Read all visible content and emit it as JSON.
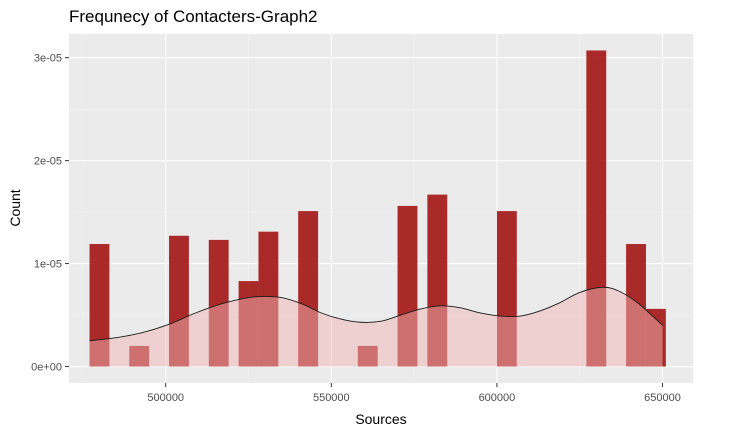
{
  "chart_data": {
    "type": "bar",
    "title": "Frequnecy of Contacters-Graph2",
    "xlabel": "Sources",
    "ylabel": "Count",
    "xlim": [
      470800,
      659200
    ],
    "ylim": [
      -1.6e-06,
      3.23e-05
    ],
    "x_ticks": [
      500000,
      550000,
      600000,
      650000
    ],
    "x_tick_labels": [
      "500000",
      "550000",
      "600000",
      "650000"
    ],
    "y_ticks": [
      0,
      1e-05,
      2e-05,
      3e-05
    ],
    "y_tick_labels": [
      "0e+00",
      "1e-05",
      "2e-05",
      "3e-05"
    ],
    "grid": true,
    "legend": "none",
    "histogram": {
      "bin_width": 6000,
      "bins": [
        {
          "x_start": 477000,
          "x_end": 483000,
          "value": 1.19e-05
        },
        {
          "x_start": 489000,
          "x_end": 495000,
          "value": 2e-06
        },
        {
          "x_start": 501000,
          "x_end": 507000,
          "value": 1.27e-05
        },
        {
          "x_start": 513000,
          "x_end": 519000,
          "value": 1.23e-05
        },
        {
          "x_start": 522000,
          "x_end": 528000,
          "value": 8.3e-06
        },
        {
          "x_start": 528000,
          "x_end": 534000,
          "value": 1.31e-05
        },
        {
          "x_start": 540000,
          "x_end": 546000,
          "value": 1.51e-05
        },
        {
          "x_start": 558000,
          "x_end": 564000,
          "value": 2e-06
        },
        {
          "x_start": 570000,
          "x_end": 576000,
          "value": 1.56e-05
        },
        {
          "x_start": 579000,
          "x_end": 585000,
          "value": 1.67e-05
        },
        {
          "x_start": 600000,
          "x_end": 606000,
          "value": 1.51e-05
        },
        {
          "x_start": 627000,
          "x_end": 633000,
          "value": 3.07e-05
        },
        {
          "x_start": 639000,
          "x_end": 645000,
          "value": 1.19e-05
        },
        {
          "x_start": 645000,
          "x_end": 651000,
          "value": 5.6e-06
        }
      ]
    },
    "density": {
      "x": [
        477000,
        485000,
        493000,
        501000,
        509000,
        517000,
        525000,
        530000,
        535000,
        541000,
        547000,
        553000,
        559000,
        565000,
        571000,
        577000,
        583000,
        589000,
        595000,
        601000,
        607000,
        613000,
        619000,
        625000,
        632000,
        637000,
        642000,
        646000,
        650000
      ],
      "y": [
        2.5e-06,
        2.8e-06,
        3.3e-06,
        4.1e-06,
        5.2e-06,
        6.1e-06,
        6.7e-06,
        6.8e-06,
        6.7e-06,
        6.1e-06,
        5.2e-06,
        4.6e-06,
        4.3e-06,
        4.4e-06,
        5e-06,
        5.6e-06,
        5.9e-06,
        5.7e-06,
        5.2e-06,
        4.9e-06,
        4.9e-06,
        5.4e-06,
        6.2e-06,
        7.2e-06,
        7.7e-06,
        7.3e-06,
        6.3e-06,
        5.2e-06,
        4e-06
      ]
    },
    "colors": {
      "panel": "#ebebeb",
      "grid_major": "#ffffff",
      "grid_minor": "#f4f4f4",
      "bar": "#a31515",
      "density_fill": "#f3b5b5",
      "density_line": "#1a1a1a"
    }
  }
}
